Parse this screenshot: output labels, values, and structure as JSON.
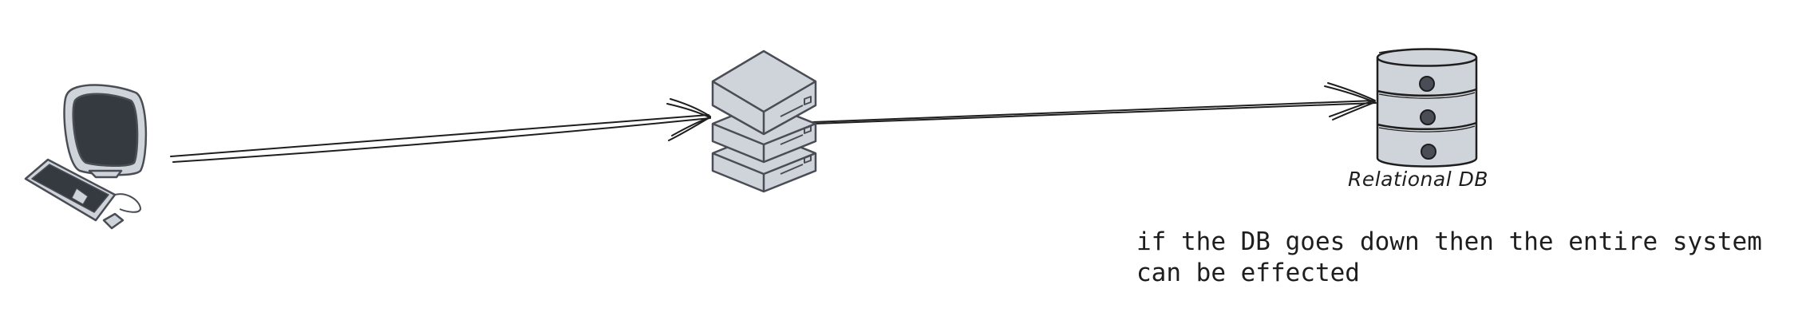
{
  "nodes": {
    "client": {
      "icon": "computer-icon"
    },
    "server": {
      "icon": "server-rack-icon"
    },
    "database": {
      "icon": "database-icon",
      "label": "Relational DB"
    }
  },
  "edges": [
    {
      "from": "client",
      "to": "server"
    },
    {
      "from": "server",
      "to": "database"
    }
  ],
  "annotations": {
    "note": "if the DB goes down then the entire system\ncan be effected"
  },
  "colors": {
    "stroke": "#1e1e1e",
    "icon_outline": "#4a4d55",
    "icon_fill": "#ced4da",
    "screen_dark": "#343a40"
  }
}
